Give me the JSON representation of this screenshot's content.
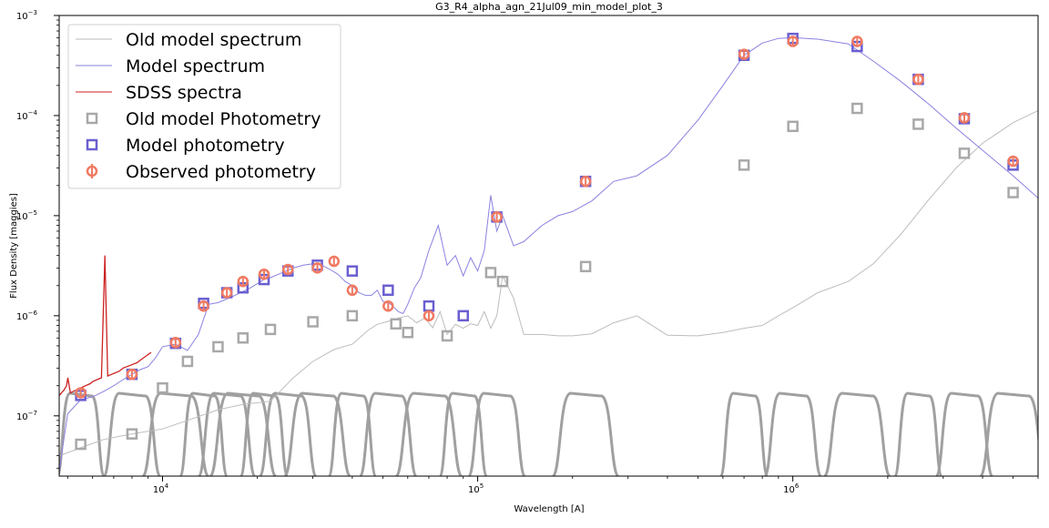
{
  "chart_data": {
    "type": "scatter",
    "title": "G3_R4_alpha_agn_21Jul09_min_model_plot_3",
    "xlabel": "Wavelength [A]",
    "ylabel": "Flux Density [maggies]",
    "xscale": "log",
    "yscale": "log",
    "xlim": [
      4700,
      6000000
    ],
    "ylim": [
      2.5e-08,
      0.001
    ],
    "x_major_ticks": [
      {
        "value": 10000,
        "base": "10",
        "exp": "4"
      },
      {
        "value": 100000,
        "base": "10",
        "exp": "5"
      },
      {
        "value": 1000000,
        "base": "10",
        "exp": "6"
      }
    ],
    "y_major_ticks": [
      {
        "value": 1e-07,
        "base": "10",
        "exp": "−7"
      },
      {
        "value": 1e-06,
        "base": "10",
        "exp": "−6"
      },
      {
        "value": 1e-05,
        "base": "10",
        "exp": "−5"
      },
      {
        "value": 0.0001,
        "base": "10",
        "exp": "−4"
      },
      {
        "value": 0.001,
        "base": "10",
        "exp": "−3"
      }
    ],
    "grid": false,
    "legend_position": "top-left",
    "legend": [
      {
        "label": "Old model spectrum",
        "kind": "line",
        "color": "#b8b8b8"
      },
      {
        "label": "Model spectrum",
        "kind": "line",
        "color": "#8a82e0"
      },
      {
        "label": "SDSS spectra",
        "kind": "line",
        "color": "#cc2222"
      },
      {
        "label": "Old model Photometry",
        "kind": "square",
        "color": "#a8a8a8"
      },
      {
        "label": "Model photometry",
        "kind": "square",
        "color": "#6a5fd0"
      },
      {
        "label": "Observed photometry",
        "kind": "circle-errorbar",
        "color": "#f07a62"
      }
    ],
    "colors": {
      "old_model": "#bdbdbd",
      "model": "#8a82e0",
      "sdss": "#cc2222",
      "old_phot": "#a8a8a8",
      "model_phot": "#6a5fd0",
      "obs_phot": "#f07a62",
      "filters": "#a0a0a0"
    },
    "series": [
      {
        "name": "Old model spectrum",
        "style": "line",
        "x": [
          4700,
          5500,
          6500,
          8000,
          10000,
          12000,
          15000,
          18000,
          22000,
          26000,
          30000,
          35000,
          40000,
          45000,
          48000,
          52000,
          56000,
          60000,
          64000,
          68000,
          72000,
          76000,
          80000,
          85000,
          90000,
          95000,
          100000,
          105000,
          110000,
          115000,
          120000,
          130000,
          140000,
          160000,
          180000,
          200000,
          230000,
          270000,
          320000,
          400000,
          500000,
          600000,
          700000,
          800000,
          900000,
          1000000,
          1200000,
          1500000,
          1800000,
          2200000,
          2700000,
          3300000,
          4000000,
          5000000,
          6000000
        ],
        "y": [
          4e-08,
          4.8e-08,
          5.8e-08,
          6.6e-08,
          7.4e-08,
          9e-08,
          1.15e-07,
          1.3e-07,
          1.4e-07,
          2.4e-07,
          3.5e-07,
          4.6e-07,
          5.2e-07,
          7.2e-07,
          8.2e-07,
          8.8e-07,
          9.5e-07,
          1e-06,
          8.5e-07,
          9.5e-07,
          7.6e-07,
          1.1e-06,
          6.5e-07,
          8.2e-07,
          7.5e-07,
          8.3e-07,
          8e-07,
          1.1e-06,
          7.5e-07,
          1e-06,
          2.5e-06,
          1.5e-06,
          6.5e-07,
          6.5e-07,
          6.3e-07,
          6.3e-07,
          6.6e-07,
          8.5e-07,
          1e-06,
          6.4e-07,
          6.3e-07,
          6.8e-07,
          7.5e-07,
          8e-07,
          1e-06,
          1.2e-06,
          1.7e-06,
          2.2e-06,
          3.3e-06,
          6.5e-06,
          1.45e-05,
          3e-05,
          5.3e-05,
          8.5e-05,
          0.000112
        ]
      },
      {
        "name": "Model spectrum",
        "style": "line",
        "x": [
          4700,
          5000,
          5500,
          6000,
          6500,
          7000,
          7500,
          8000,
          8500,
          9000,
          9500,
          10000,
          11000,
          12000,
          13000,
          14000,
          15000,
          17000,
          19000,
          21000,
          22000,
          24000,
          26000,
          28000,
          30000,
          32000,
          34000,
          36000,
          38000,
          40000,
          42000,
          44000,
          46000,
          48000,
          50000,
          53000,
          56000,
          58000,
          60000,
          63000,
          66000,
          70000,
          75000,
          80000,
          85000,
          90000,
          95000,
          100000,
          105000,
          110000,
          115000,
          120000,
          130000,
          140000,
          160000,
          180000,
          200000,
          230000,
          270000,
          320000,
          400000,
          500000,
          600000,
          700000,
          800000,
          900000,
          1000000,
          1200000,
          1500000,
          1800000,
          2200000,
          2700000,
          3300000,
          4000000,
          5000000,
          6000000
        ],
        "y": [
          2.8e-08,
          1.05e-07,
          1.45e-07,
          1.55e-07,
          1.75e-07,
          2e-07,
          2.3e-07,
          2.6e-07,
          2.9e-07,
          3.1e-07,
          3.8e-07,
          4.9e-07,
          5.2e-07,
          4.5e-07,
          6.5e-07,
          1.3e-06,
          1.35e-06,
          1.6e-06,
          1.9e-06,
          2.3e-06,
          2.4e-06,
          2.7e-06,
          3e-06,
          3.2e-06,
          3.3e-06,
          3.2e-06,
          2.9e-06,
          2.6e-06,
          2.2e-06,
          2e-06,
          1.7e-06,
          1.6e-06,
          1.6e-06,
          1.8e-06,
          1.4e-06,
          1.3e-06,
          1.1e-06,
          1.05e-06,
          1.3e-06,
          1.9e-06,
          2.4e-06,
          4.5e-06,
          8e-06,
          3.2e-06,
          4e-06,
          2.5e-06,
          3.8e-06,
          2.8e-06,
          4.5e-06,
          1.6e-05,
          7e-06,
          1e-05,
          5e-06,
          5.5e-06,
          8e-06,
          1e-05,
          1.1e-05,
          1.4e-05,
          2.2e-05,
          2.5e-05,
          4e-05,
          9e-05,
          0.0002,
          0.0004,
          0.00053,
          0.00059,
          0.0006,
          0.00058,
          0.00052,
          0.00035,
          0.00022,
          0.00013,
          7.5e-05,
          4.5e-05,
          2.5e-05,
          1.5e-05
        ]
      },
      {
        "name": "SDSS spectra",
        "style": "line",
        "x": [
          3600,
          3650,
          3700,
          3750,
          3800,
          3850,
          3900,
          3950,
          4000,
          4100,
          4200,
          4300,
          4340,
          4400,
          4500,
          4600,
          4700,
          4861,
          4959,
          5007,
          5100,
          5200,
          5300,
          5400,
          5500,
          5600,
          5700,
          5800,
          5900,
          6000,
          6200,
          6400,
          6563,
          6700,
          6900,
          7100,
          7300,
          7500,
          7700,
          7900,
          8100,
          8300,
          8500,
          8700,
          8900,
          9100,
          9200
        ],
        "y": [
          1.1e-07,
          1e-07,
          1.15e-07,
          1.1e-07,
          1.2e-07,
          1.15e-07,
          1.2e-07,
          1.25e-07,
          1.3e-07,
          1.35e-07,
          1.4e-07,
          1.45e-07,
          1.6e-07,
          1.5e-07,
          1.55e-07,
          1.5e-07,
          1.6e-07,
          1.8e-07,
          2e-07,
          2.4e-07,
          1.7e-07,
          1.75e-07,
          1.8e-07,
          1.85e-07,
          1.9e-07,
          1.95e-07,
          2e-07,
          2.05e-07,
          2.1e-07,
          2.2e-07,
          2.3e-07,
          2.4e-07,
          4e-06,
          2.5e-07,
          2.6e-07,
          2.7e-07,
          2.8e-07,
          3e-07,
          3.1e-07,
          3.2e-07,
          3.3e-07,
          3.4e-07,
          3.6e-07,
          3.8e-07,
          4e-07,
          4.2e-07,
          4.3e-07
        ]
      },
      {
        "name": "Old model Photometry",
        "style": "square",
        "x": [
          5500,
          8000,
          10000,
          12000,
          15000,
          18000,
          22000,
          30000,
          40000,
          55000,
          60000,
          80000,
          110000,
          120000,
          220000,
          700000,
          1000000,
          1600000,
          2500000,
          3500000,
          5000000
        ],
        "y": [
          5.2e-08,
          6.6e-08,
          1.9e-07,
          3.5e-07,
          4.9e-07,
          6e-07,
          7.3e-07,
          8.7e-07,
          1e-06,
          8.3e-07,
          6.8e-07,
          6.3e-07,
          2.7e-06,
          2.2e-06,
          3.1e-06,
          3.2e-05,
          7.8e-05,
          0.000118,
          8.2e-05,
          4.2e-05,
          1.7e-05
        ]
      },
      {
        "name": "Model photometry",
        "style": "square",
        "x": [
          5500,
          8000,
          11000,
          13500,
          16000,
          18000,
          21000,
          25000,
          31000,
          40000,
          52000,
          70000,
          90000,
          115000,
          220000,
          700000,
          1000000,
          1600000,
          2500000,
          3500000,
          5000000
        ],
        "y": [
          1.6e-07,
          2.6e-07,
          5.3e-07,
          1.33e-06,
          1.7e-06,
          1.9e-06,
          2.3e-06,
          2.8e-06,
          3.2e-06,
          2.8e-06,
          1.8e-06,
          1.25e-06,
          1e-06,
          9.7e-06,
          2.2e-05,
          0.0004,
          0.00059,
          0.00049,
          0.00023,
          9.3e-05,
          3.2e-05
        ]
      },
      {
        "name": "Observed photometry",
        "style": "circle",
        "x": [
          5500,
          8000,
          11000,
          13500,
          16000,
          18000,
          21000,
          25000,
          31000,
          35000,
          40000,
          52000,
          70000,
          115000,
          220000,
          700000,
          1000000,
          1600000,
          2500000,
          3500000,
          5000000
        ],
        "y": [
          1.7e-07,
          2.6e-07,
          5.4e-07,
          1.25e-06,
          1.7e-06,
          2.2e-06,
          2.6e-06,
          2.9e-06,
          3e-06,
          3.5e-06,
          1.8e-06,
          1.25e-06,
          1e-06,
          9.7e-06,
          2.2e-05,
          0.00041,
          0.00055,
          0.00055,
          0.00023,
          9.5e-05,
          3.5e-05
        ]
      }
    ]
  }
}
